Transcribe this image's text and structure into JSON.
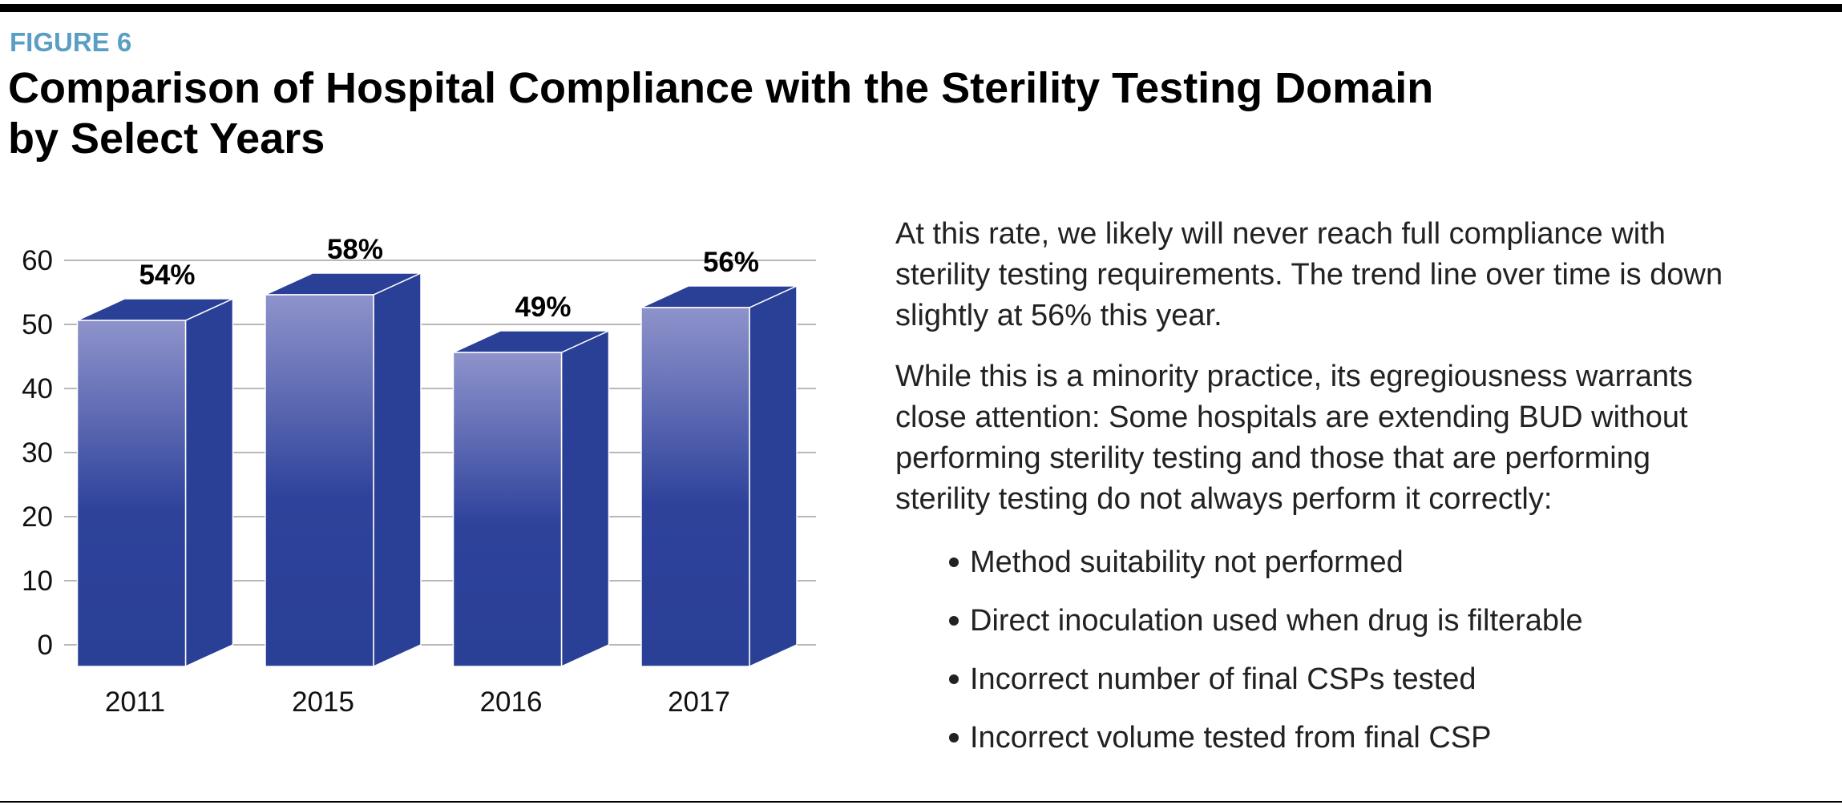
{
  "chart_data": {
    "type": "bar3d",
    "figure_label": "FIGURE 6",
    "title": [
      "Comparison of Hospital Compliance with the Sterility Testing Domain",
      "by Select Years"
    ],
    "categories": [
      "2011",
      "2015",
      "2016",
      "2017"
    ],
    "values": [
      54,
      58,
      49,
      56
    ],
    "value_labels": [
      "54%",
      "58%",
      "49%",
      "56%"
    ],
    "color": "#2a3f96",
    "ylim": [
      0,
      60
    ],
    "yticks": [
      0,
      10,
      20,
      30,
      40,
      50,
      60
    ],
    "grid": true
  },
  "text": {
    "paragraphs": [
      [
        "At this rate, we likely will never reach full compliance with",
        "sterility testing requirements. The trend line over time is down",
        "slightly at 56% this year."
      ],
      [
        "While this is a minority practice, its egregiousness warrants",
        "close attention: Some hospitals are extending BUD without",
        "performing sterility testing and those that are performing",
        "sterility testing do not always perform it correctly:"
      ]
    ],
    "bullets": [
      "Method suitability not performed",
      "Direct inoculation used when drug is filterable",
      "Incorrect number of final CSPs tested",
      "Incorrect volume tested from final CSP"
    ]
  }
}
